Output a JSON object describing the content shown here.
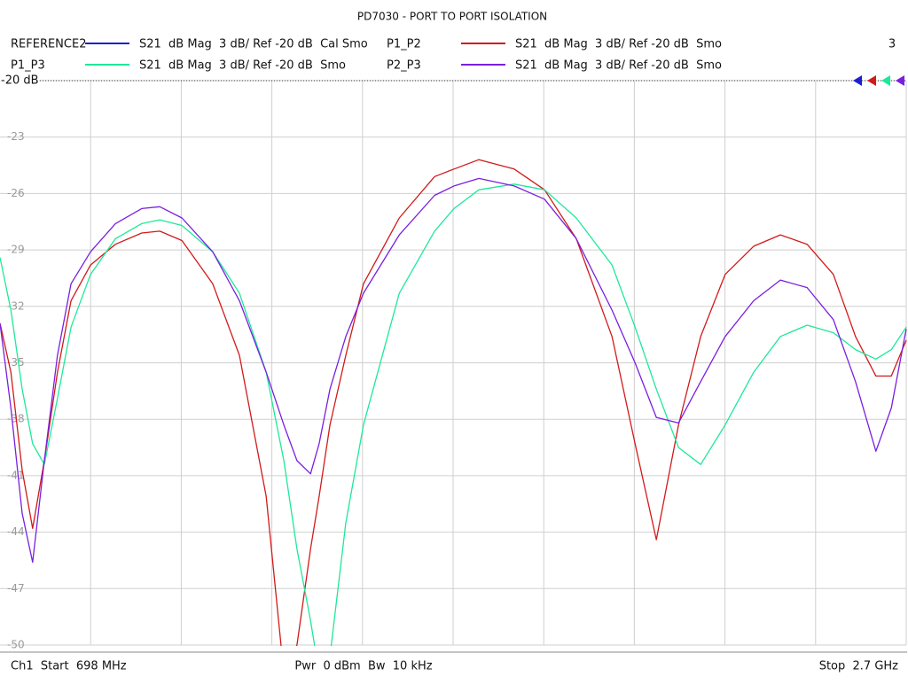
{
  "chart_data": {
    "type": "line",
    "title": "PD7030 - PORT TO PORT ISOLATION",
    "ref_label": "-20 dB",
    "channel_number": "3",
    "footer_left": "Ch1  Start  698 MHz",
    "footer_center": "Pwr  0 dBm  Bw  10 kHz",
    "footer_right": "Stop  2.7 GHz",
    "xlim": [
      698,
      2700
    ],
    "ylim": [
      -50,
      -20
    ],
    "yticks": [
      -20,
      -23,
      -26,
      -29,
      -32,
      -35,
      -38,
      -41,
      -44,
      -47,
      -50
    ],
    "grid": true,
    "x": [
      698,
      722,
      747,
      770,
      796,
      825,
      855,
      898,
      953,
      1011,
      1051,
      1100,
      1168,
      1227,
      1286,
      1325,
      1354,
      1384,
      1403,
      1427,
      1462,
      1501,
      1580,
      1658,
      1701,
      1756,
      1834,
      1901,
      1971,
      2050,
      2101,
      2148,
      2197,
      2246,
      2300,
      2363,
      2422,
      2481,
      2539,
      2588,
      2633,
      2667,
      2700
    ],
    "series": [
      {
        "name": "REFERENCE2",
        "description": "S21  dB Mag  3 dB/ Ref -20 dB  Cal Smo",
        "color": "#1f1fd0",
        "values": [
          null,
          null,
          null,
          null,
          null,
          null,
          null,
          null,
          null,
          null,
          null,
          null,
          null,
          null,
          null,
          null,
          null,
          null,
          null,
          null,
          null,
          null,
          null,
          null,
          null,
          null,
          null,
          null,
          null,
          null,
          null,
          null,
          null,
          null,
          null,
          null,
          null,
          null,
          null,
          null,
          null,
          null,
          null
        ]
      },
      {
        "name": "P1_P2",
        "description": "S21  dB Mag  3 dB/ Ref -20 dB  Smo",
        "color": "#d11a1a",
        "values": [
          -32.9,
          -35.5,
          -40.7,
          -43.8,
          -40.2,
          -35.5,
          -31.7,
          -29.8,
          -28.7,
          -28.1,
          -28.0,
          -28.5,
          -30.8,
          -34.6,
          -42.1,
          -51.5,
          -50.0,
          -44.9,
          -42.1,
          -38.3,
          -34.6,
          -30.8,
          -27.3,
          -25.1,
          -24.7,
          -24.2,
          -24.7,
          -25.8,
          -28.4,
          -33.6,
          -39.3,
          -44.4,
          -38.3,
          -33.6,
          -30.3,
          -28.8,
          -28.2,
          -28.7,
          -30.3,
          -33.6,
          -35.7,
          -35.7,
          -33.8
        ]
      },
      {
        "name": "P1_P3",
        "description": "S21  dB Mag  3 dB/ Ref -20 dB  Smo",
        "color": "#1ee89a",
        "values": [
          -29.4,
          -32.2,
          -36.4,
          -39.3,
          -40.4,
          -36.9,
          -33.1,
          -30.3,
          -28.4,
          -27.6,
          -27.4,
          -27.7,
          -29.1,
          -31.3,
          -35.5,
          -40.2,
          -44.9,
          -48.7,
          -51.5,
          -50.6,
          -43.5,
          -38.3,
          -31.3,
          -28.0,
          -26.8,
          -25.8,
          -25.5,
          -25.8,
          -27.3,
          -29.8,
          -33.1,
          -36.4,
          -39.5,
          -40.4,
          -38.3,
          -35.5,
          -33.6,
          -33.0,
          -33.4,
          -34.3,
          -34.8,
          -34.3,
          -33.1
        ]
      },
      {
        "name": "P2_P3",
        "description": "S21  dB Mag  3 dB/ Ref -20 dB  Smo",
        "color": "#7a1fe0",
        "values": [
          -32.9,
          -37.4,
          -43.0,
          -45.6,
          -40.2,
          -34.6,
          -30.8,
          -29.1,
          -27.6,
          -26.8,
          -26.7,
          -27.3,
          -29.1,
          -31.7,
          -35.5,
          -38.3,
          -40.2,
          -40.9,
          -39.3,
          -36.4,
          -33.6,
          -31.3,
          -28.2,
          -26.1,
          -25.6,
          -25.2,
          -25.6,
          -26.3,
          -28.4,
          -32.2,
          -35.0,
          -37.9,
          -38.2,
          -36.0,
          -33.6,
          -31.7,
          -30.6,
          -31.0,
          -32.7,
          -36.0,
          -39.7,
          -37.4,
          -33.2
        ]
      }
    ]
  }
}
